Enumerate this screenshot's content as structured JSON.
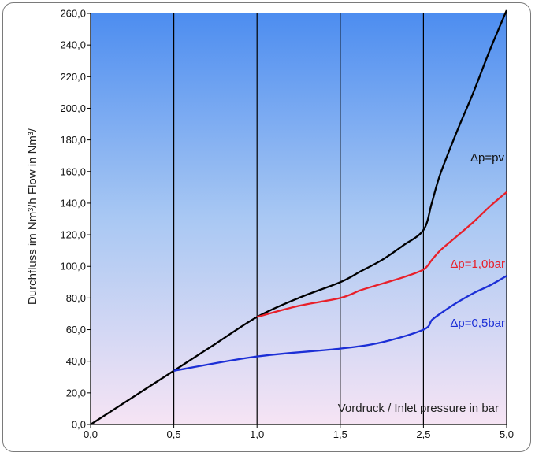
{
  "chart_data": {
    "type": "line",
    "title": "",
    "xlabel": "Vordruck / Inlet pressure in bar",
    "ylabel": "Durchfluss im Nm³/h  Flow in Nm³/",
    "x_ticks": [
      "0,0",
      "0,5",
      "1,0",
      "1,5",
      "2,5",
      "5,0"
    ],
    "x_positions": [
      0,
      0.5,
      1.0,
      1.5,
      2.5,
      5.0
    ],
    "y_ticks": [
      "0,0",
      "20,0",
      "40,0",
      "60,0",
      "80,0",
      "100,0",
      "120,0",
      "140,0",
      "160,0",
      "180,0",
      "200,0",
      "220,0",
      "240,0",
      "260,0"
    ],
    "ylim": [
      0,
      260
    ],
    "grid": "vertical lines at tick positions",
    "background": {
      "top": "#4d8df0",
      "bottom": "#f6e4f4"
    },
    "series": [
      {
        "name": "Δp=pv",
        "color": "#000000",
        "label_color": "#111111",
        "x": [
          0,
          0.5,
          0.75,
          1.0,
          1.25,
          1.5,
          1.75,
          2.0,
          2.25,
          2.5,
          2.75,
          3.0,
          3.5,
          4.0,
          4.5,
          5.0
        ],
        "y": [
          0,
          34,
          51,
          68,
          80,
          90,
          97,
          104,
          113,
          123,
          140,
          158,
          185,
          210,
          237,
          262
        ]
      },
      {
        "name": "Δp=1,0bar",
        "color": "#e8202a",
        "label_color": "#e8202a",
        "x": [
          1.0,
          1.25,
          1.5,
          1.75,
          2.0,
          2.25,
          2.5,
          2.75,
          3.0,
          3.5,
          4.0,
          4.5,
          5.0
        ],
        "y": [
          68,
          75,
          80,
          85,
          89,
          93,
          98,
          104,
          110,
          119,
          128,
          138,
          147
        ]
      },
      {
        "name": "Δp=0,5bar",
        "color": "#1c2fd6",
        "label_color": "#1c2fd6",
        "x": [
          0.5,
          1.0,
          1.5,
          2.0,
          2.5,
          2.75,
          3.0,
          3.5,
          4.0,
          4.5,
          5.0
        ],
        "y": [
          34,
          43,
          48,
          52,
          60,
          66,
          70,
          77,
          83,
          88,
          94
        ]
      }
    ]
  }
}
